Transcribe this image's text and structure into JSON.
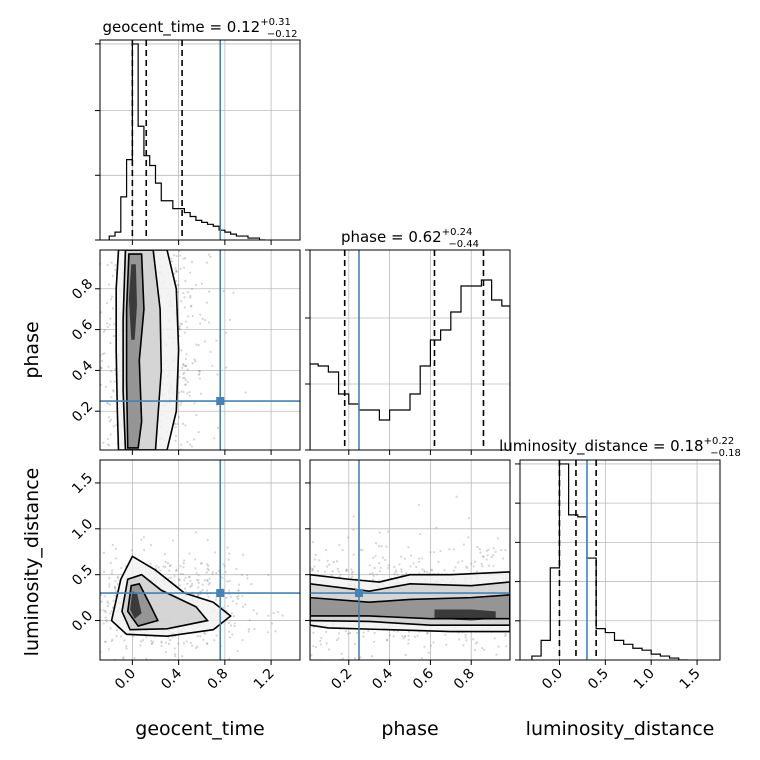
{
  "colors": {
    "truth": "#4682b4",
    "hist": "#000000",
    "contour": "#000000",
    "grid": "#bbbbbb",
    "scatter": "#888888"
  },
  "chart_data": {
    "type": "corner",
    "parameters": [
      "geocent_time",
      "phase",
      "luminosity_distance"
    ],
    "axis_labels": [
      "geocent_time",
      "phase",
      "luminosity_distance"
    ],
    "ranges": {
      "geocent_time": [
        -0.28,
        1.45
      ],
      "phase": [
        0.01,
        0.99
      ],
      "luminosity_distance": [
        -0.43,
        1.75
      ]
    },
    "ticks": {
      "geocent_time": [
        0.0,
        0.4,
        0.8,
        1.2
      ],
      "phase": [
        0.2,
        0.4,
        0.6,
        0.8
      ],
      "luminosity_distance": [
        0.0,
        0.5,
        1.0,
        1.5
      ]
    },
    "tick_labels": {
      "geocent_time": [
        "0.0",
        "0.4",
        "0.8",
        "1.2"
      ],
      "phase": [
        "0.2",
        "0.4",
        "0.6",
        "0.8"
      ],
      "luminosity_distance": [
        "0.0",
        "0.5",
        "1.0",
        "1.5"
      ]
    },
    "titles": [
      {
        "name": "geocent_time",
        "median": "0.12",
        "plus": "+0.31",
        "minus": "−0.12"
      },
      {
        "name": "phase",
        "median": "0.62",
        "plus": "+0.24",
        "minus": "−0.44"
      },
      {
        "name": "luminosity_distance",
        "median": "0.18",
        "plus": "+0.22",
        "minus": "−0.18"
      }
    ],
    "truths": {
      "geocent_time": 0.76,
      "phase": 0.25,
      "luminosity_distance": 0.3
    },
    "quantiles": {
      "geocent_time": [
        0.0,
        0.12,
        0.43
      ],
      "phase": [
        0.18,
        0.62,
        0.86
      ],
      "luminosity_distance": [
        0.0,
        0.18,
        0.4
      ]
    },
    "histograms": {
      "geocent_time": {
        "edges": [
          -0.2,
          -0.15,
          -0.1,
          -0.05,
          0.0,
          0.05,
          0.1,
          0.15,
          0.2,
          0.25,
          0.3,
          0.35,
          0.4,
          0.45,
          0.5,
          0.55,
          0.6,
          0.65,
          0.7,
          0.75,
          0.8,
          0.85,
          0.9,
          0.95,
          1.0,
          1.05,
          1.1,
          1.15
        ],
        "counts": [
          0.02,
          0.04,
          0.22,
          0.41,
          1.0,
          0.58,
          0.43,
          0.38,
          0.29,
          0.2,
          0.2,
          0.16,
          0.16,
          0.14,
          0.12,
          0.1,
          0.09,
          0.08,
          0.07,
          0.05,
          0.04,
          0.03,
          0.02,
          0.02,
          0.01,
          0.01,
          0.0
        ]
      },
      "phase": {
        "edges": [
          0.01,
          0.05,
          0.1,
          0.15,
          0.2,
          0.25,
          0.3,
          0.35,
          0.4,
          0.45,
          0.5,
          0.55,
          0.6,
          0.65,
          0.7,
          0.75,
          0.8,
          0.85,
          0.9,
          0.95,
          0.99
        ],
        "counts": [
          0.43,
          0.42,
          0.39,
          0.28,
          0.23,
          0.2,
          0.2,
          0.15,
          0.2,
          0.2,
          0.28,
          0.42,
          0.55,
          0.6,
          0.69,
          0.82,
          0.82,
          0.85,
          0.75,
          0.72
        ]
      },
      "luminosity_distance": {
        "edges": [
          -0.3,
          -0.2,
          -0.1,
          0.0,
          0.1,
          0.2,
          0.3,
          0.4,
          0.5,
          0.6,
          0.7,
          0.8,
          0.9,
          1.0,
          1.1,
          1.2,
          1.3,
          1.4
        ],
        "counts": [
          0.02,
          0.1,
          0.47,
          1.0,
          0.74,
          0.73,
          0.52,
          0.16,
          0.14,
          0.1,
          0.08,
          0.06,
          0.05,
          0.03,
          0.02,
          0.01,
          0.0
        ]
      }
    },
    "hist_ylim": {
      "geocent_time": [
        0,
        1.02
      ],
      "phase": [
        0,
        1.0
      ],
      "luminosity_distance": [
        0,
        1.02
      ]
    },
    "hist_yticks": {
      "geocent_time": [
        0.0,
        0.33,
        0.66,
        1.0
      ],
      "phase": [
        0.0,
        0.33,
        0.66,
        1.0
      ],
      "luminosity_distance": [
        0.0,
        0.2,
        0.4,
        0.6,
        0.8,
        1.0
      ]
    },
    "pairs": [
      {
        "x": "geocent_time",
        "y": "phase",
        "contours": [
          [
            [
              -0.12,
              0.01
            ],
            [
              -0.13,
              0.2
            ],
            [
              -0.14,
              0.5
            ],
            [
              -0.14,
              0.8
            ],
            [
              -0.12,
              0.99
            ],
            [
              0.3,
              0.99
            ],
            [
              0.38,
              0.8
            ],
            [
              0.4,
              0.5
            ],
            [
              0.38,
              0.2
            ],
            [
              0.3,
              0.01
            ]
          ],
          [
            [
              -0.06,
              0.01
            ],
            [
              -0.08,
              0.3
            ],
            [
              -0.08,
              0.65
            ],
            [
              -0.06,
              0.99
            ],
            [
              0.18,
              0.99
            ],
            [
              0.24,
              0.7
            ],
            [
              0.25,
              0.4
            ],
            [
              0.2,
              0.01
            ]
          ],
          [
            [
              -0.04,
              0.02
            ],
            [
              -0.05,
              0.35
            ],
            [
              -0.05,
              0.7
            ],
            [
              -0.03,
              0.97
            ],
            [
              0.08,
              0.97
            ],
            [
              0.1,
              0.7
            ],
            [
              0.06,
              0.45
            ],
            [
              0.08,
              0.15
            ],
            [
              0.05,
              0.02
            ]
          ],
          [
            [
              -0.01,
              0.55
            ],
            [
              -0.03,
              0.75
            ],
            [
              -0.01,
              0.92
            ],
            [
              0.03,
              0.92
            ],
            [
              0.04,
              0.72
            ],
            [
              0.02,
              0.55
            ]
          ]
        ]
      },
      {
        "x": "geocent_time",
        "y": "luminosity_distance",
        "contours": [
          [
            [
              -0.18,
              0.0
            ],
            [
              -0.1,
              0.45
            ],
            [
              0.0,
              0.7
            ],
            [
              0.2,
              0.55
            ],
            [
              0.45,
              0.3
            ],
            [
              0.7,
              0.2
            ],
            [
              0.85,
              0.05
            ],
            [
              0.7,
              -0.1
            ],
            [
              0.3,
              -0.17
            ],
            [
              -0.05,
              -0.15
            ],
            [
              -0.18,
              0.0
            ]
          ],
          [
            [
              -0.09,
              0.1
            ],
            [
              -0.04,
              0.45
            ],
            [
              0.08,
              0.5
            ],
            [
              0.25,
              0.33
            ],
            [
              0.55,
              0.15
            ],
            [
              0.65,
              0.0
            ],
            [
              0.3,
              -0.09
            ],
            [
              -0.02,
              -0.1
            ],
            [
              -0.09,
              0.1
            ]
          ],
          [
            [
              -0.04,
              0.1
            ],
            [
              -0.01,
              0.38
            ],
            [
              0.06,
              0.4
            ],
            [
              0.15,
              0.18
            ],
            [
              0.22,
              0.0
            ],
            [
              0.05,
              -0.06
            ],
            [
              -0.04,
              0.1
            ]
          ],
          [
            [
              -0.02,
              0.12
            ],
            [
              0.0,
              0.32
            ],
            [
              0.04,
              0.3
            ],
            [
              0.08,
              0.08
            ],
            [
              0.02,
              0.02
            ],
            [
              -0.02,
              0.12
            ]
          ]
        ]
      },
      {
        "x": "phase",
        "y": "luminosity_distance",
        "contours": [
          [
            [
              0.01,
              0.5
            ],
            [
              0.2,
              0.45
            ],
            [
              0.35,
              0.42
            ],
            [
              0.5,
              0.5
            ],
            [
              0.7,
              0.5
            ],
            [
              0.99,
              0.53
            ],
            [
              0.99,
              -0.12
            ],
            [
              0.7,
              -0.12
            ],
            [
              0.4,
              -0.1
            ],
            [
              0.1,
              -0.08
            ],
            [
              0.01,
              -0.05
            ]
          ],
          [
            [
              0.01,
              0.4
            ],
            [
              0.3,
              0.32
            ],
            [
              0.5,
              0.4
            ],
            [
              0.8,
              0.38
            ],
            [
              0.99,
              0.42
            ],
            [
              0.99,
              -0.05
            ],
            [
              0.6,
              -0.05
            ],
            [
              0.3,
              -0.01
            ],
            [
              0.01,
              0.0
            ]
          ],
          [
            [
              0.01,
              0.25
            ],
            [
              0.3,
              0.2
            ],
            [
              0.5,
              0.23
            ],
            [
              0.8,
              0.25
            ],
            [
              0.99,
              0.28
            ],
            [
              0.99,
              0.02
            ],
            [
              0.6,
              0.02
            ],
            [
              0.3,
              0.05
            ],
            [
              0.01,
              0.05
            ]
          ],
          [
            [
              0.62,
              0.12
            ],
            [
              0.8,
              0.12
            ],
            [
              0.92,
              0.1
            ],
            [
              0.92,
              0.02
            ],
            [
              0.8,
              0.0
            ],
            [
              0.62,
              0.02
            ]
          ]
        ]
      }
    ],
    "grid": true
  }
}
